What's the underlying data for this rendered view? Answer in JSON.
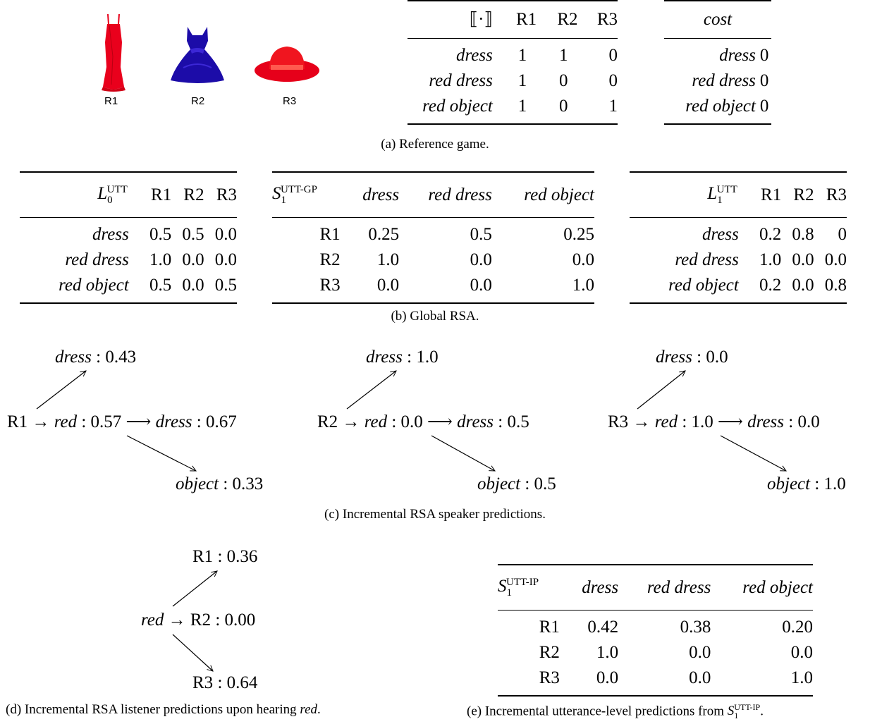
{
  "panel_a": {
    "image_labels": [
      "R1",
      "R2",
      "R3"
    ],
    "semantics_table": {
      "corner": "⟦·⟧",
      "columns": [
        "R1",
        "R2",
        "R3"
      ],
      "rows": [
        {
          "label": "dress",
          "values": [
            "1",
            "1",
            "0"
          ]
        },
        {
          "label": "red dress",
          "values": [
            "1",
            "0",
            "0"
          ]
        },
        {
          "label": "red object",
          "values": [
            "1",
            "0",
            "1"
          ]
        }
      ]
    },
    "cost_table": {
      "header": "cost",
      "rows": [
        {
          "label": "dress",
          "value": "0"
        },
        {
          "label": "red dress",
          "value": "0"
        },
        {
          "label": "red object",
          "value": "0"
        }
      ]
    },
    "caption": "(a) Reference game."
  },
  "panel_b": {
    "l0": {
      "symbol": "L",
      "sub": "0",
      "sup": "UTT",
      "columns": [
        "R1",
        "R2",
        "R3"
      ],
      "rows": [
        {
          "label": "dress",
          "values": [
            "0.5",
            "0.5",
            "0.0"
          ]
        },
        {
          "label": "red dress",
          "values": [
            "1.0",
            "0.0",
            "0.0"
          ]
        },
        {
          "label": "red object",
          "values": [
            "0.5",
            "0.0",
            "0.5"
          ]
        }
      ]
    },
    "s1": {
      "symbol": "S",
      "sub": "1",
      "sup": "UTT-GP",
      "columns": [
        "dress",
        "red dress",
        "red object"
      ],
      "rows": [
        {
          "label": "R1",
          "values": [
            "0.25",
            "0.5",
            "0.25"
          ]
        },
        {
          "label": "R2",
          "values": [
            "1.0",
            "0.0",
            "0.0"
          ]
        },
        {
          "label": "R3",
          "values": [
            "0.0",
            "0.0",
            "1.0"
          ]
        }
      ]
    },
    "l1": {
      "symbol": "L",
      "sub": "1",
      "sup": "UTT",
      "columns": [
        "R1",
        "R2",
        "R3"
      ],
      "rows": [
        {
          "label": "dress",
          "values": [
            "0.2",
            "0.8",
            "0"
          ]
        },
        {
          "label": "red dress",
          "values": [
            "1.0",
            "0.0",
            "0.0"
          ]
        },
        {
          "label": "red object",
          "values": [
            "0.2",
            "0.0",
            "0.8"
          ]
        }
      ]
    },
    "caption": "(b) Global RSA."
  },
  "panel_c": {
    "trees": [
      {
        "root": "R1",
        "red": "0.57",
        "top": "0.43",
        "mid": "0.67",
        "bottom": "0.33"
      },
      {
        "root": "R2",
        "red": "0.0",
        "top": "1.0",
        "mid": "0.5",
        "bottom": "0.5"
      },
      {
        "root": "R3",
        "red": "1.0",
        "top": "0.0",
        "mid": "0.0",
        "bottom": "1.0"
      }
    ],
    "words": {
      "dress": "dress",
      "red": "red",
      "object": "object"
    },
    "caption": "(c) Incremental RSA speaker predictions."
  },
  "panel_d": {
    "word": "red",
    "top": {
      "label": "R1",
      "value": "0.36"
    },
    "mid": {
      "label": "R2",
      "value": "0.00"
    },
    "bottom": {
      "label": "R3",
      "value": "0.64"
    },
    "caption_prefix": "(d) Incremental RSA listener predictions upon hearing ",
    "caption_word": "red",
    "caption_suffix": "."
  },
  "panel_e": {
    "s1": {
      "symbol": "S",
      "sub": "1",
      "sup": "UTT-IP",
      "columns": [
        "dress",
        "red dress",
        "red object"
      ],
      "rows": [
        {
          "label": "R1",
          "values": [
            "0.42",
            "0.38",
            "0.20"
          ]
        },
        {
          "label": "R2",
          "values": [
            "1.0",
            "0.0",
            "0.0"
          ]
        },
        {
          "label": "R3",
          "values": [
            "0.0",
            "0.0",
            "1.0"
          ]
        }
      ]
    },
    "caption_prefix": "(e) Incremental utterance-level predictions from ",
    "caption_symbol": "S",
    "caption_sub": "1",
    "caption_sup": "UTT-IP",
    "caption_suffix": "."
  }
}
